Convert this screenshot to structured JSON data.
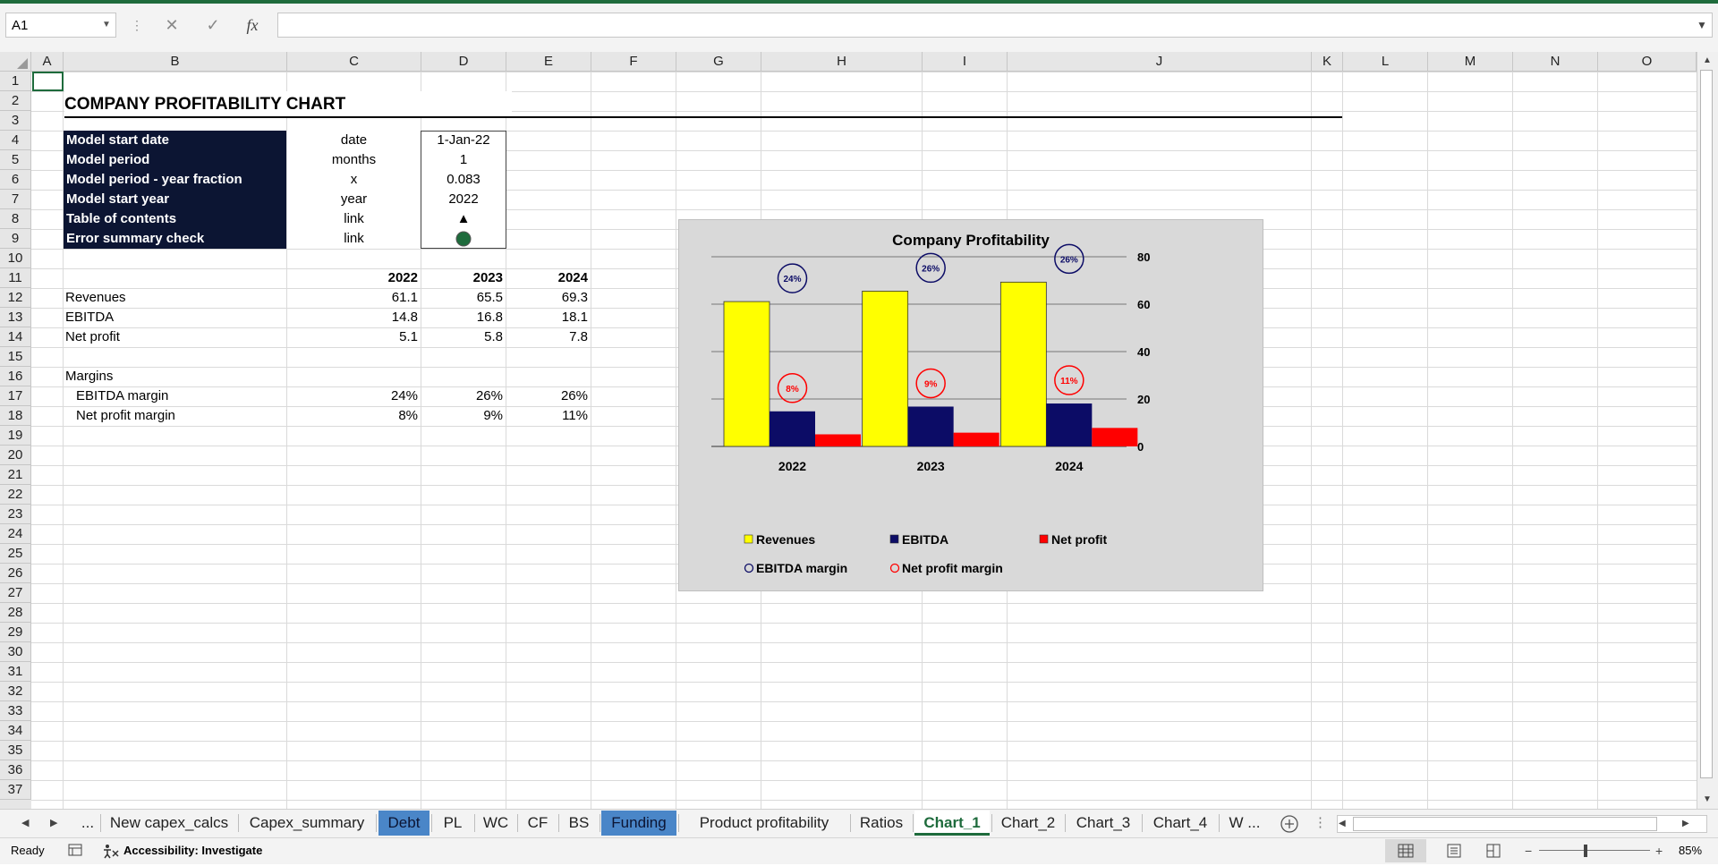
{
  "formula_bar": {
    "name_box": "A1",
    "cancel_icon": "✕",
    "enter_icon": "✓",
    "fx_label": "fx",
    "formula": ""
  },
  "columns": [
    "A",
    "B",
    "C",
    "D",
    "E",
    "F",
    "G",
    "H",
    "I",
    "J",
    "K",
    "L",
    "M",
    "N",
    "O"
  ],
  "rows": [
    "1",
    "2",
    "3",
    "4",
    "5",
    "6",
    "7",
    "8",
    "9",
    "10",
    "11",
    "12",
    "13",
    "14",
    "15",
    "16",
    "17",
    "18",
    "19",
    "20",
    "21",
    "22",
    "23",
    "24",
    "25",
    "26",
    "27",
    "28",
    "29",
    "30",
    "31",
    "32",
    "33",
    "34",
    "35",
    "36",
    "37"
  ],
  "sheet": {
    "title": "COMPANY PROFITABILITY CHART",
    "settings": [
      {
        "label": "Model start date",
        "unit": "date",
        "value": "1-Jan-22"
      },
      {
        "label": "Model period",
        "unit": "months",
        "value": "1"
      },
      {
        "label": "Model period - year fraction",
        "unit": "x",
        "value": "0.083"
      },
      {
        "label": "Model start year",
        "unit": "year",
        "value": "2022"
      },
      {
        "label": "Table of contents",
        "unit": "link",
        "value": "▲"
      },
      {
        "label": "Error summary check",
        "unit": "link",
        "value": ""
      }
    ],
    "status_color": "#1e6b3c",
    "years": [
      "2022",
      "2023",
      "2024"
    ],
    "metrics": [
      {
        "label": "Revenues",
        "values": [
          "61.1",
          "65.5",
          "69.3"
        ]
      },
      {
        "label": "EBITDA",
        "values": [
          "14.8",
          "16.8",
          "18.1"
        ]
      },
      {
        "label": "Net profit",
        "values": [
          "5.1",
          "5.8",
          "7.8"
        ]
      }
    ],
    "margins_heading": "Margins",
    "margins": [
      {
        "label": "EBITDA margin",
        "values": [
          "24%",
          "26%",
          "26%"
        ]
      },
      {
        "label": "Net profit margin",
        "values": [
          "8%",
          "9%",
          "11%"
        ]
      }
    ]
  },
  "chart_data": {
    "type": "bar",
    "title": "Company Profitability",
    "categories": [
      "2022",
      "2023",
      "2024"
    ],
    "series": [
      {
        "name": "Revenues",
        "values": [
          61.1,
          65.5,
          69.3
        ],
        "color": "#ffff00"
      },
      {
        "name": "EBITDA",
        "values": [
          14.8,
          16.8,
          18.1
        ],
        "color": "#0c0c66"
      },
      {
        "name": "Net profit",
        "values": [
          5.1,
          5.8,
          7.8
        ],
        "color": "#ff0000"
      }
    ],
    "margin_series": [
      {
        "name": "EBITDA margin",
        "labels": [
          "24%",
          "26%",
          "26%"
        ],
        "values": [
          24,
          26,
          26
        ],
        "color": "#0c0c66"
      },
      {
        "name": "Net profit margin",
        "labels": [
          "8%",
          "9%",
          "11%"
        ],
        "values": [
          8,
          9,
          11
        ],
        "color": "#ff0000"
      }
    ],
    "ylim": [
      0,
      80
    ],
    "yticks": [
      "0",
      "20",
      "40",
      "60",
      "80"
    ],
    "grid": true,
    "legend": "bottom"
  },
  "tabs": [
    {
      "label": "...",
      "style": "normal"
    },
    {
      "label": "New capex_calcs",
      "style": "normal"
    },
    {
      "label": "Capex_summary",
      "style": "normal"
    },
    {
      "label": "Debt",
      "style": "blue"
    },
    {
      "label": "PL",
      "style": "normal"
    },
    {
      "label": "WC",
      "style": "normal"
    },
    {
      "label": "CF",
      "style": "normal"
    },
    {
      "label": "BS",
      "style": "normal"
    },
    {
      "label": "Funding",
      "style": "blue"
    },
    {
      "label": "Product profitability",
      "style": "normal"
    },
    {
      "label": "Ratios",
      "style": "normal"
    },
    {
      "label": "Chart_1",
      "style": "active"
    },
    {
      "label": "Chart_2",
      "style": "normal"
    },
    {
      "label": "Chart_3",
      "style": "normal"
    },
    {
      "label": "Chart_4",
      "style": "normal"
    },
    {
      "label": "W ...",
      "style": "normal"
    }
  ],
  "status": {
    "ready": "Ready",
    "accessibility": "Accessibility: Investigate",
    "zoom": "85%"
  }
}
